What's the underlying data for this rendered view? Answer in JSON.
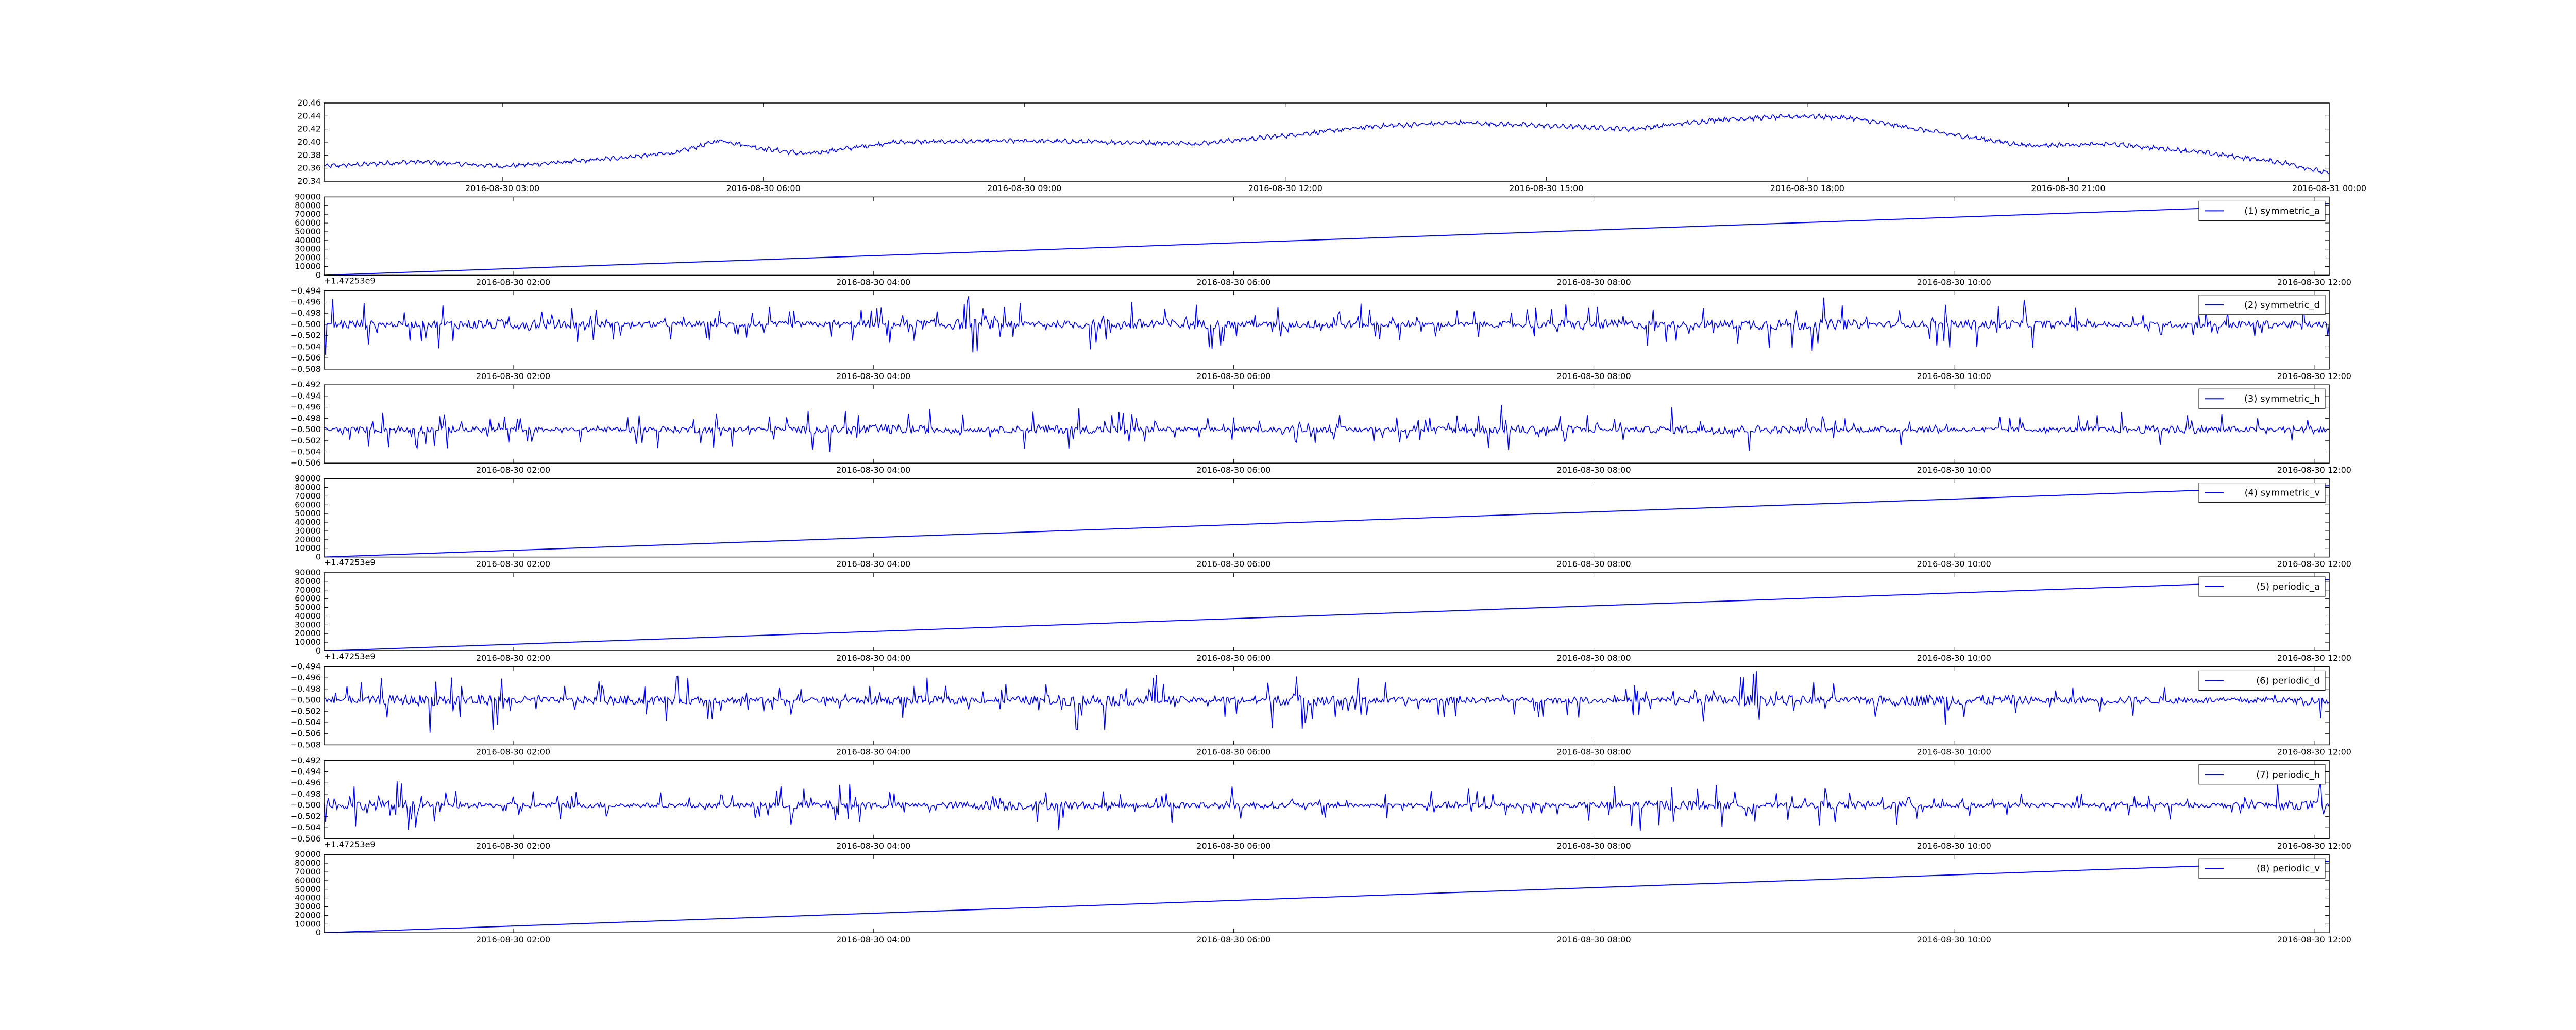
{
  "chart_data": [
    {
      "type": "line",
      "title": "",
      "xlabel": "",
      "ylabel": "",
      "x_axis": "datetime",
      "xlim": [
        "2016-08-30 00:57",
        "2016-08-31 00:00"
      ],
      "ylim": [
        20.34,
        20.46
      ],
      "ytick_labels": [
        "20.34",
        "20.36",
        "20.38",
        "20.40",
        "20.42",
        "20.44",
        "20.46"
      ],
      "xtick_labels": [
        "2016-08-30 03:00",
        "2016-08-30 06:00",
        "2016-08-30 09:00",
        "2016-08-30 12:00",
        "2016-08-30 15:00",
        "2016-08-30 18:00",
        "2016-08-30 21:00",
        "2016-08-31 00:00"
      ],
      "offset_text": "",
      "legend": null,
      "grid": false,
      "series": [
        {
          "color": "#0000ff",
          "x": [
            "2016-08-30 00:57",
            "2016-08-30 02:00",
            "2016-08-30 03:00",
            "2016-08-30 04:00",
            "2016-08-30 05:00",
            "2016-08-30 05:30",
            "2016-08-30 06:00",
            "2016-08-30 06:30",
            "2016-08-30 07:30",
            "2016-08-30 09:00",
            "2016-08-30 11:00",
            "2016-08-30 12:00",
            "2016-08-30 13:00",
            "2016-08-30 14:00",
            "2016-08-30 15:00",
            "2016-08-30 16:00",
            "2016-08-30 17:00",
            "2016-08-30 18:00",
            "2016-08-30 18:30",
            "2016-08-30 19:30",
            "2016-08-30 20:30",
            "2016-08-30 21:30",
            "2016-08-30 22:30",
            "2016-08-30 23:30",
            "2016-08-31 00:00"
          ],
          "y": [
            20.363,
            20.37,
            20.363,
            20.372,
            20.384,
            20.403,
            20.39,
            20.382,
            20.4,
            20.402,
            20.398,
            20.41,
            20.424,
            20.43,
            20.425,
            20.42,
            20.435,
            20.44,
            20.437,
            20.415,
            20.395,
            20.397,
            20.385,
            20.368,
            20.352
          ],
          "noise": 0.005
        }
      ]
    },
    {
      "type": "line",
      "title": "",
      "xlabel": "",
      "ylabel": "",
      "x_axis": "datetime",
      "xlim": [
        "2016-08-30 00:57",
        "2016-08-30 12:05"
      ],
      "ylim": [
        0,
        90000
      ],
      "ytick_labels": [
        "0",
        "10000",
        "20000",
        "30000",
        "40000",
        "50000",
        "60000",
        "70000",
        "80000",
        "90000"
      ],
      "xtick_labels": [
        "2016-08-30 02:00",
        "2016-08-30 04:00",
        "2016-08-30 06:00",
        "2016-08-30 08:00",
        "2016-08-30 10:00",
        "2016-08-30 12:00"
      ],
      "offset_text": "+1.47253e9",
      "legend": {
        "label": "(1) symmetric_a",
        "loc": "upper right"
      },
      "grid": false,
      "series": [
        {
          "name": "(1) symmetric_a",
          "color": "#0000ff",
          "x": [
            "2016-08-30 00:57",
            "2016-08-30 12:05"
          ],
          "y": [
            0,
            82000
          ],
          "noise": 0
        }
      ]
    },
    {
      "type": "line",
      "title": "",
      "xlabel": "",
      "ylabel": "",
      "x_axis": "datetime",
      "xlim": [
        "2016-08-30 00:57",
        "2016-08-30 12:05"
      ],
      "ylim": [
        -0.508,
        -0.494
      ],
      "ytick_labels": [
        "−0.508",
        "−0.506",
        "−0.504",
        "−0.502",
        "−0.500",
        "−0.498",
        "−0.496",
        "−0.494"
      ],
      "xtick_labels": [
        "2016-08-30 02:00",
        "2016-08-30 04:00",
        "2016-08-30 06:00",
        "2016-08-30 08:00",
        "2016-08-30 10:00",
        "2016-08-30 12:00"
      ],
      "offset_text": "",
      "legend": {
        "label": "(2) symmetric_d",
        "loc": "upper right"
      },
      "grid": false,
      "series": [
        {
          "name": "(2) symmetric_d",
          "color": "#0000ff",
          "x": [
            "2016-08-30 00:57",
            "2016-08-30 12:05"
          ],
          "y": [
            -0.5,
            -0.5
          ],
          "noise": 0.006
        }
      ]
    },
    {
      "type": "line",
      "title": "",
      "xlabel": "",
      "ylabel": "",
      "x_axis": "datetime",
      "xlim": [
        "2016-08-30 00:57",
        "2016-08-30 12:05"
      ],
      "ylim": [
        -0.506,
        -0.492
      ],
      "ytick_labels": [
        "−0.506",
        "−0.504",
        "−0.502",
        "−0.500",
        "−0.498",
        "−0.496",
        "−0.494",
        "−0.492"
      ],
      "xtick_labels": [
        "2016-08-30 02:00",
        "2016-08-30 04:00",
        "2016-08-30 06:00",
        "2016-08-30 08:00",
        "2016-08-30 10:00",
        "2016-08-30 12:00"
      ],
      "offset_text": "",
      "legend": {
        "label": "(3) symmetric_h",
        "loc": "upper right"
      },
      "grid": false,
      "series": [
        {
          "name": "(3) symmetric_h",
          "color": "#0000ff",
          "x": [
            "2016-08-30 00:57",
            "2016-08-30 12:05"
          ],
          "y": [
            -0.5,
            -0.5
          ],
          "noise": 0.005
        }
      ]
    },
    {
      "type": "line",
      "title": "",
      "xlabel": "",
      "ylabel": "",
      "x_axis": "datetime",
      "xlim": [
        "2016-08-30 00:57",
        "2016-08-30 12:05"
      ],
      "ylim": [
        0,
        90000
      ],
      "ytick_labels": [
        "0",
        "10000",
        "20000",
        "30000",
        "40000",
        "50000",
        "60000",
        "70000",
        "80000",
        "90000"
      ],
      "xtick_labels": [
        "2016-08-30 02:00",
        "2016-08-30 04:00",
        "2016-08-30 06:00",
        "2016-08-30 08:00",
        "2016-08-30 10:00",
        "2016-08-30 12:00"
      ],
      "offset_text": "+1.47253e9",
      "legend": {
        "label": "(4) symmetric_v",
        "loc": "upper right"
      },
      "grid": false,
      "series": [
        {
          "name": "(4) symmetric_v",
          "color": "#0000ff",
          "x": [
            "2016-08-30 00:57",
            "2016-08-30 12:05"
          ],
          "y": [
            0,
            82000
          ],
          "noise": 0
        }
      ]
    },
    {
      "type": "line",
      "title": "",
      "xlabel": "",
      "ylabel": "",
      "x_axis": "datetime",
      "xlim": [
        "2016-08-30 00:57",
        "2016-08-30 12:05"
      ],
      "ylim": [
        0,
        90000
      ],
      "ytick_labels": [
        "0",
        "10000",
        "20000",
        "30000",
        "40000",
        "50000",
        "60000",
        "70000",
        "80000",
        "90000"
      ],
      "xtick_labels": [
        "2016-08-30 02:00",
        "2016-08-30 04:00",
        "2016-08-30 06:00",
        "2016-08-30 08:00",
        "2016-08-30 10:00",
        "2016-08-30 12:00"
      ],
      "offset_text": "+1.47253e9",
      "legend": {
        "label": "(5) periodic_a",
        "loc": "upper right"
      },
      "grid": false,
      "series": [
        {
          "name": "(5) periodic_a",
          "color": "#0000ff",
          "x": [
            "2016-08-30 00:57",
            "2016-08-30 12:05"
          ],
          "y": [
            0,
            82000
          ],
          "noise": 0
        }
      ]
    },
    {
      "type": "line",
      "title": "",
      "xlabel": "",
      "ylabel": "",
      "x_axis": "datetime",
      "xlim": [
        "2016-08-30 00:57",
        "2016-08-30 12:05"
      ],
      "ylim": [
        -0.508,
        -0.494
      ],
      "ytick_labels": [
        "−0.508",
        "−0.506",
        "−0.504",
        "−0.502",
        "−0.500",
        "−0.498",
        "−0.496",
        "−0.494"
      ],
      "xtick_labels": [
        "2016-08-30 02:00",
        "2016-08-30 04:00",
        "2016-08-30 06:00",
        "2016-08-30 08:00",
        "2016-08-30 10:00",
        "2016-08-30 12:00"
      ],
      "offset_text": "",
      "legend": {
        "label": "(6) periodic_d",
        "loc": "upper right"
      },
      "grid": false,
      "series": [
        {
          "name": "(6) periodic_d",
          "color": "#0000ff",
          "x": [
            "2016-08-30 00:57",
            "2016-08-30 12:05"
          ],
          "y": [
            -0.5,
            -0.5
          ],
          "noise": 0.006
        }
      ]
    },
    {
      "type": "line",
      "title": "",
      "xlabel": "",
      "ylabel": "",
      "x_axis": "datetime",
      "xlim": [
        "2016-08-30 00:57",
        "2016-08-30 12:05"
      ],
      "ylim": [
        -0.506,
        -0.492
      ],
      "ytick_labels": [
        "−0.506",
        "−0.504",
        "−0.502",
        "−0.500",
        "−0.498",
        "−0.496",
        "−0.494",
        "−0.492"
      ],
      "xtick_labels": [
        "2016-08-30 02:00",
        "2016-08-30 04:00",
        "2016-08-30 06:00",
        "2016-08-30 08:00",
        "2016-08-30 10:00",
        "2016-08-30 12:00"
      ],
      "offset_text": "+1.47253e9",
      "legend": {
        "label": "(7) periodic_h",
        "loc": "upper right"
      },
      "grid": false,
      "series": [
        {
          "name": "(7) periodic_h",
          "color": "#0000ff",
          "x": [
            "2016-08-30 00:57",
            "2016-08-30 12:05"
          ],
          "y": [
            -0.5,
            -0.5
          ],
          "noise": 0.005
        }
      ]
    },
    {
      "type": "line",
      "title": "",
      "xlabel": "",
      "ylabel": "",
      "x_axis": "datetime",
      "xlim": [
        "2016-08-30 00:57",
        "2016-08-30 12:05"
      ],
      "ylim": [
        0,
        90000
      ],
      "ytick_labels": [
        "0",
        "10000",
        "20000",
        "30000",
        "40000",
        "50000",
        "60000",
        "70000",
        "80000",
        "90000"
      ],
      "xtick_labels": [
        "2016-08-30 02:00",
        "2016-08-30 04:00",
        "2016-08-30 06:00",
        "2016-08-30 08:00",
        "2016-08-30 10:00",
        "2016-08-30 12:00"
      ],
      "offset_text": "",
      "legend": {
        "label": "(8) periodic_v",
        "loc": "upper right"
      },
      "grid": false,
      "series": [
        {
          "name": "(8) periodic_v",
          "color": "#0000ff",
          "x": [
            "2016-08-30 00:57",
            "2016-08-30 12:05"
          ],
          "y": [
            0,
            82000
          ],
          "noise": 0
        }
      ]
    }
  ]
}
